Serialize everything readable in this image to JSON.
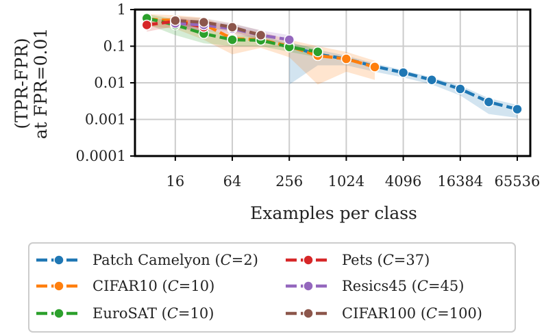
{
  "chart_data": {
    "type": "line",
    "title": "",
    "xlabel": "Examples per class",
    "ylabel_line1": "(TPR-FPR)",
    "ylabel_line2": "at FPR=0.01",
    "xscale": "log2",
    "yscale": "log10",
    "xlim": [
      6,
      90000
    ],
    "ylim": [
      0.0001,
      1
    ],
    "grid": true,
    "legend_position": "bottom",
    "x_ticks": [
      16,
      64,
      256,
      1024,
      4096,
      16384,
      65536
    ],
    "x_tick_labels": [
      "16",
      "64",
      "256",
      "1024",
      "4096",
      "16384",
      "65536"
    ],
    "y_ticks": [
      0.0001,
      0.001,
      0.01,
      0.1,
      1
    ],
    "y_tick_labels": [
      "0.0001",
      "0.001",
      "0.01",
      "0.1",
      "1"
    ],
    "series": [
      {
        "name": "Patch Camelyon",
        "classes": "2",
        "color": "#1f77b4",
        "x": [
          256,
          512,
          1024,
          2048,
          4096,
          8192,
          16384,
          32768,
          65536
        ],
        "y": [
          0.1,
          0.06,
          0.045,
          0.028,
          0.019,
          0.012,
          0.0068,
          0.003,
          0.0019
        ],
        "lower": [
          0.009,
          0.03,
          0.03,
          0.02,
          0.014,
          0.009,
          0.0045,
          0.0014,
          0.0011
        ],
        "upper": [
          0.13,
          0.08,
          0.055,
          0.034,
          0.022,
          0.014,
          0.0085,
          0.0038,
          0.0025
        ]
      },
      {
        "name": "CIFAR10",
        "classes": "10",
        "color": "#ff7f0e",
        "x": [
          8,
          16,
          32,
          64,
          128,
          256,
          512,
          1024,
          2048
        ],
        "y": [
          0.55,
          0.5,
          0.4,
          0.16,
          0.15,
          0.1,
          0.055,
          0.045,
          0.027
        ],
        "lower": [
          0.35,
          0.3,
          0.15,
          0.06,
          0.09,
          0.05,
          0.009,
          0.02,
          0.012
        ],
        "upper": [
          0.75,
          0.7,
          0.6,
          0.3,
          0.25,
          0.15,
          0.1,
          0.07,
          0.04
        ]
      },
      {
        "name": "EuroSAT",
        "classes": "10",
        "color": "#2ca02c",
        "x": [
          8,
          16,
          32,
          64,
          128,
          256,
          512
        ],
        "y": [
          0.58,
          0.38,
          0.22,
          0.15,
          0.145,
          0.095,
          0.07
        ],
        "lower": [
          0.4,
          0.2,
          0.12,
          0.1,
          0.1,
          0.07,
          0.05
        ],
        "upper": [
          0.75,
          0.55,
          0.3,
          0.2,
          0.19,
          0.12,
          0.09
        ]
      },
      {
        "name": "Pets",
        "classes": "37",
        "color": "#d62728",
        "x": [
          8,
          16,
          32
        ],
        "y": [
          0.38,
          0.48,
          0.33
        ],
        "lower": [
          0.25,
          0.35,
          0.22
        ],
        "upper": [
          0.5,
          0.62,
          0.45
        ]
      },
      {
        "name": "Resics45",
        "classes": "45",
        "color": "#9467bd",
        "x": [
          16,
          32,
          64,
          128,
          256
        ],
        "y": [
          0.42,
          0.38,
          0.3,
          0.2,
          0.15
        ],
        "lower": [
          0.3,
          0.27,
          0.22,
          0.15,
          0.11
        ],
        "upper": [
          0.55,
          0.5,
          0.4,
          0.27,
          0.2
        ]
      },
      {
        "name": "CIFAR100",
        "classes": "100",
        "color": "#8c564b",
        "x": [
          16,
          32,
          64,
          128
        ],
        "y": [
          0.5,
          0.45,
          0.33,
          0.2
        ],
        "lower": [
          0.35,
          0.33,
          0.25,
          0.15
        ],
        "upper": [
          0.65,
          0.58,
          0.42,
          0.27
        ]
      }
    ]
  }
}
